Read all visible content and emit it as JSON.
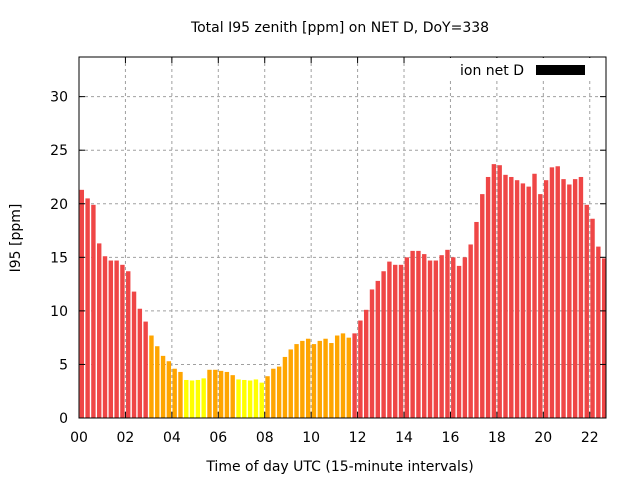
{
  "chart_data": {
    "type": "bar",
    "title": "Total I95 zenith [ppm] on NET D, DoY=338",
    "xlabel": "Time of day UTC (15-minute intervals)",
    "ylabel": "I95 [ppm]",
    "xlim": [
      0,
      22.7
    ],
    "ylim": [
      0,
      33.7
    ],
    "x_ticks": [
      "00",
      "02",
      "04",
      "06",
      "08",
      "10",
      "12",
      "14",
      "16",
      "18",
      "20",
      "22"
    ],
    "x_tick_values": [
      0,
      2,
      4,
      6,
      8,
      10,
      12,
      14,
      16,
      18,
      20,
      22
    ],
    "y_ticks": [
      0,
      5,
      10,
      15,
      20,
      25,
      30
    ],
    "grid": true,
    "legend": {
      "label": "ion net D",
      "placement": "top-right",
      "color": "#000000"
    },
    "bar_interval_hours": 0.25,
    "color_levels": {
      "red": "#ef4646",
      "orange": "#ffa500",
      "yellow": "#ffff00"
    },
    "values": [
      21.3,
      20.5,
      19.9,
      16.3,
      15.1,
      14.7,
      14.7,
      14.3,
      13.7,
      11.8,
      10.2,
      9.0,
      7.7,
      6.7,
      5.8,
      5.3,
      4.6,
      4.3,
      3.55,
      3.5,
      3.55,
      3.7,
      4.5,
      4.5,
      4.4,
      4.3,
      4.0,
      3.6,
      3.55,
      3.5,
      3.6,
      3.3,
      3.9,
      4.6,
      4.8,
      5.7,
      6.4,
      6.9,
      7.2,
      7.4,
      6.9,
      7.2,
      7.4,
      7.0,
      7.7,
      7.9,
      7.5,
      7.9,
      9.1,
      10.1,
      12.0,
      12.8,
      13.7,
      14.6,
      14.3,
      14.3,
      15.0,
      15.6,
      15.6,
      15.3,
      14.7,
      14.7,
      15.2,
      15.7,
      15.0,
      14.2,
      15.0,
      16.2,
      18.3,
      20.9,
      22.5,
      23.7,
      23.6,
      22.7,
      22.5,
      22.2,
      21.9,
      21.6,
      22.8,
      20.9,
      22.2,
      23.4,
      23.5,
      22.3,
      21.8,
      22.3,
      22.5,
      19.9,
      18.6,
      16.0,
      14.9,
      15.5
    ],
    "colors": [
      "red",
      "red",
      "red",
      "red",
      "red",
      "red",
      "red",
      "red",
      "red",
      "red",
      "red",
      "red",
      "orange",
      "orange",
      "orange",
      "orange",
      "orange",
      "orange",
      "yellow",
      "yellow",
      "yellow",
      "yellow",
      "orange",
      "orange",
      "orange",
      "orange",
      "orange",
      "yellow",
      "yellow",
      "yellow",
      "yellow",
      "yellow",
      "orange",
      "orange",
      "orange",
      "orange",
      "orange",
      "orange",
      "orange",
      "orange",
      "orange",
      "orange",
      "orange",
      "orange",
      "orange",
      "orange",
      "orange",
      "red",
      "red",
      "red",
      "red",
      "red",
      "red",
      "red",
      "red",
      "red",
      "red",
      "red",
      "red",
      "red",
      "red",
      "red",
      "red",
      "red",
      "red",
      "red",
      "red",
      "red",
      "red",
      "red",
      "red",
      "red",
      "red",
      "red",
      "red",
      "red",
      "red",
      "red",
      "red",
      "red",
      "red",
      "red",
      "red",
      "red",
      "red",
      "red",
      "red",
      "red",
      "red",
      "red",
      "red",
      "red"
    ]
  }
}
